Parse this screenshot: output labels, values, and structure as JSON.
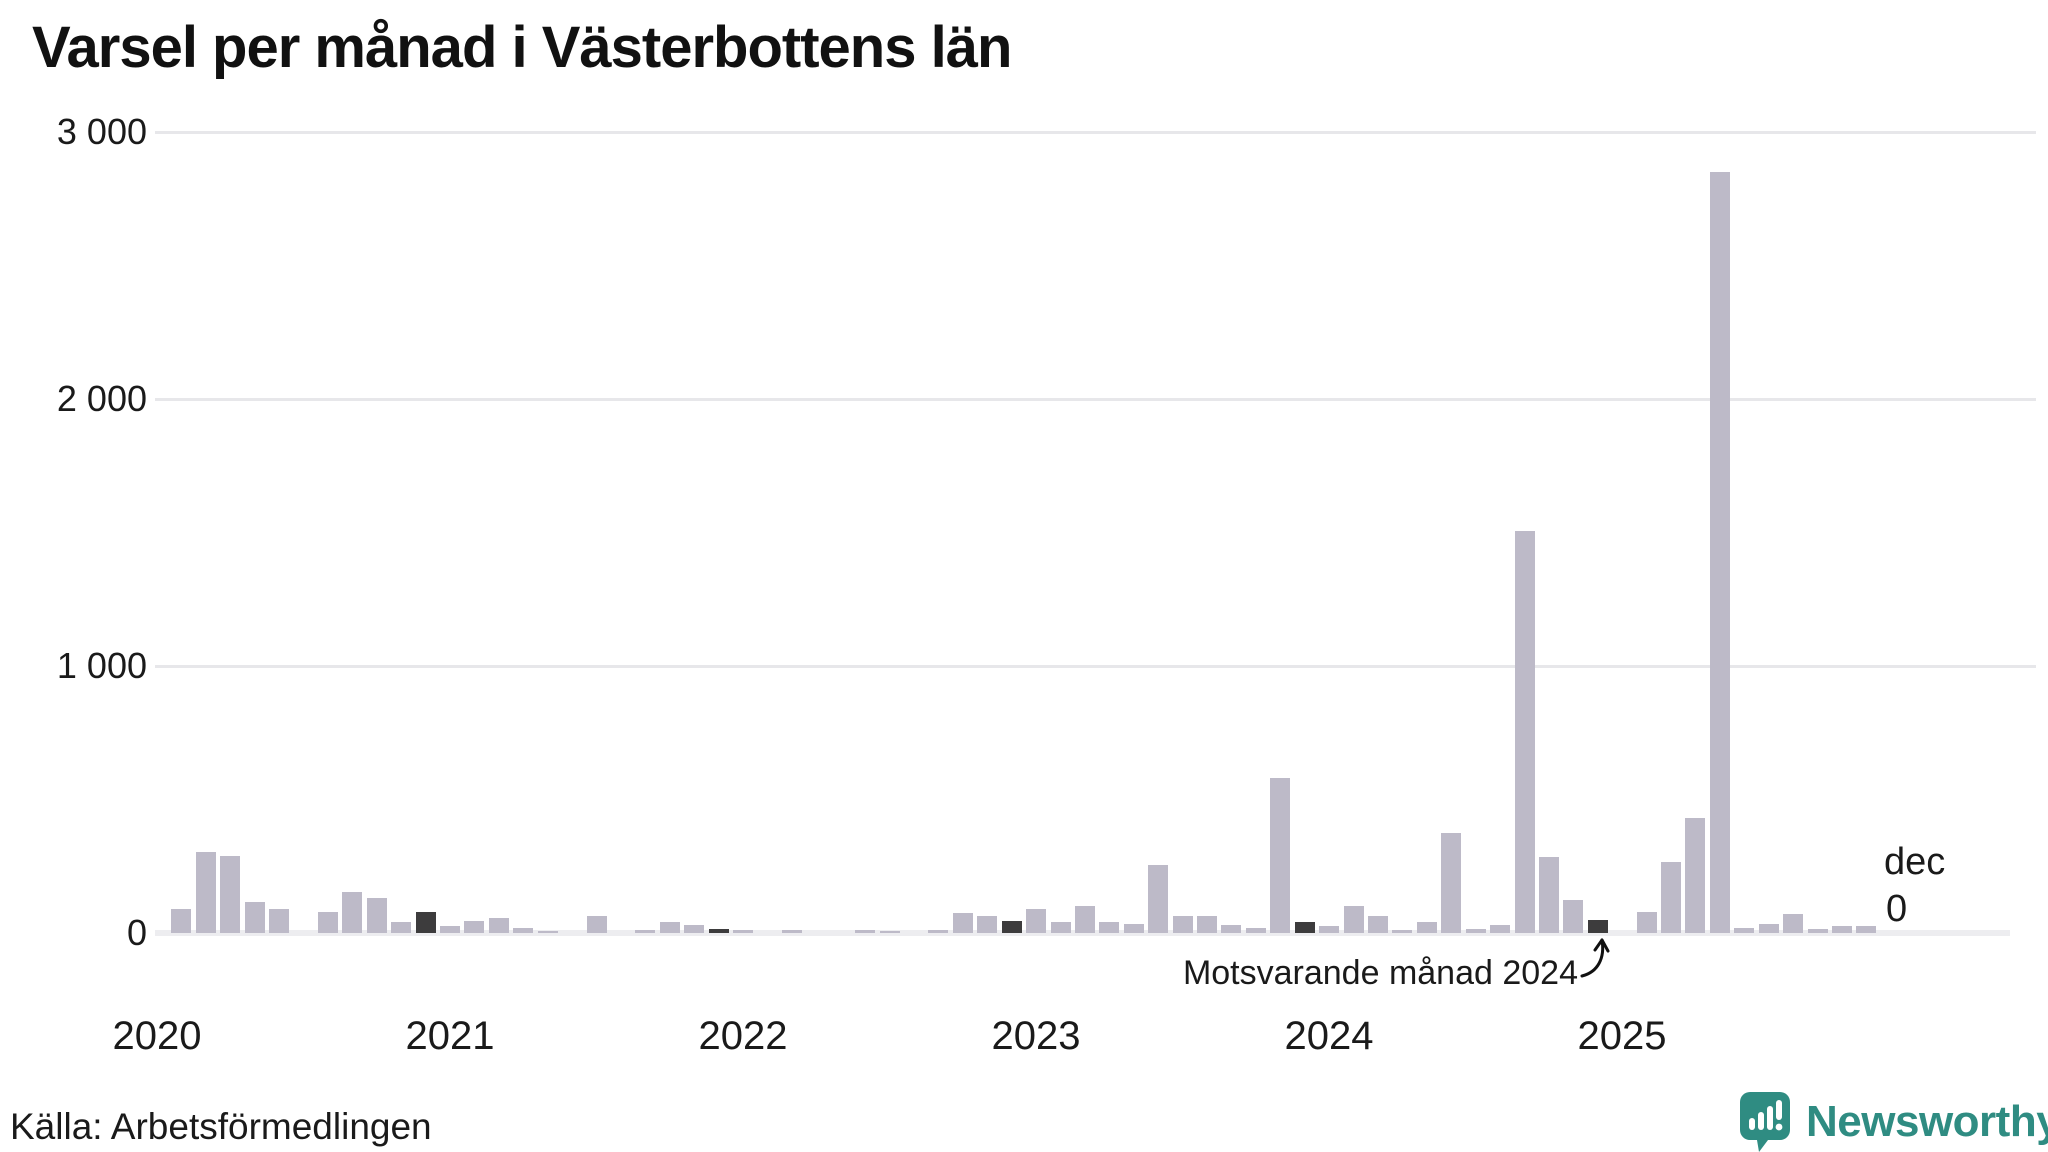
{
  "title": "Varsel per månad i Västerbottens län",
  "source": "Källa: Arbetsförmedlingen",
  "brand": {
    "name": "Newsworthy"
  },
  "annotation": {
    "text": "Motsvarande månad 2024"
  },
  "latest": {
    "month_label": "dec",
    "value_label": "0"
  },
  "colors": {
    "bar": "#bdbac8",
    "bar_highlight": "#3d3c3d",
    "accent": "#2f8c82",
    "gridline": "#e7e7ea",
    "baseline": "#ededf0",
    "text": "#1a1a1a"
  },
  "chart_data": {
    "type": "bar",
    "title": "Varsel per månad i Västerbottens län",
    "xlabel": "",
    "ylabel": "",
    "ylim": [
      0,
      3000
    ],
    "grid": true,
    "yticks": [
      {
        "label": "3 000",
        "value": 3000
      },
      {
        "label": "2 000",
        "value": 2000
      },
      {
        "label": "1 000",
        "value": 1000
      },
      {
        "label": "0",
        "value": 0
      }
    ],
    "start_month": "2020-01",
    "years": [
      {
        "year": "2020",
        "values": [
          0,
          90,
          305,
          290,
          115,
          90,
          0,
          80,
          155,
          130,
          40,
          80
        ]
      },
      {
        "year": "2021",
        "values": [
          25,
          45,
          55,
          20,
          5,
          0,
          65,
          0,
          10,
          40,
          30,
          15
        ]
      },
      {
        "year": "2022",
        "values": [
          10,
          0,
          10,
          0,
          0,
          10,
          5,
          0,
          10,
          75,
          65,
          45
        ]
      },
      {
        "year": "2023",
        "values": [
          90,
          40,
          100,
          40,
          35,
          255,
          65,
          65,
          30,
          20,
          580,
          40
        ]
      },
      {
        "year": "2024",
        "values": [
          25,
          100,
          65,
          10,
          40,
          375,
          15,
          30,
          1505,
          285,
          125,
          50
        ]
      },
      {
        "year": "2025",
        "values": [
          0,
          80,
          265,
          430,
          2850,
          20,
          35,
          70,
          15,
          25,
          25,
          0
        ]
      }
    ],
    "highlighted_months": [
      "2020-12",
      "2021-12",
      "2022-12",
      "2023-12",
      "2024-12"
    ],
    "annotation": {
      "text": "Motsvarande månad 2024",
      "points_to": "2024-12"
    },
    "last_label": {
      "month": "dec",
      "value": 0
    },
    "legend_position": "none"
  }
}
